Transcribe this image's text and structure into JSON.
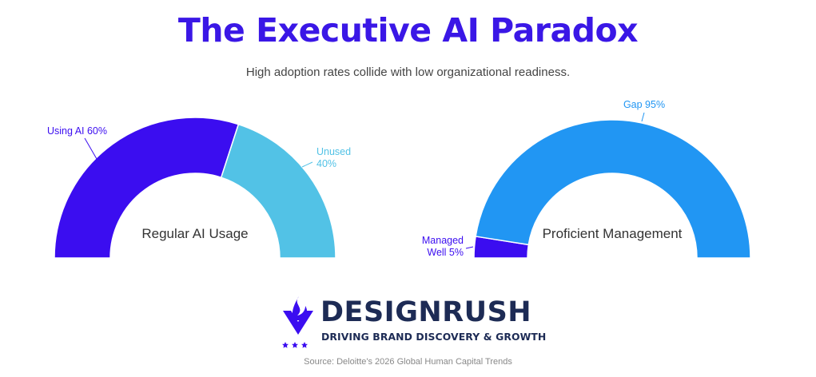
{
  "header": {
    "title": "The Executive AI Paradox",
    "subtitle": "High adoption rates collide with low organizational readiness."
  },
  "colors": {
    "title": "#3a17e6",
    "purple": "#3b0df0",
    "light_blue": "#52c2e6",
    "blue": "#2196f3",
    "label_gray": "#333333",
    "brand_navy": "#1d2b55"
  },
  "chart_data": [
    {
      "type": "pie",
      "variant": "semicircle-donut",
      "center_label": "Regular AI Usage",
      "slices": [
        {
          "label_lines": [
            "Using AI 60%"
          ],
          "value": 60,
          "color": "#3b0df0"
        },
        {
          "label_lines": [
            "Unused",
            "40%"
          ],
          "value": 40,
          "color": "#52c2e6"
        }
      ]
    },
    {
      "type": "pie",
      "variant": "semicircle-donut",
      "center_label": "Proficient Management",
      "slices": [
        {
          "label_lines": [
            "Managed",
            "Well 5%"
          ],
          "value": 5,
          "color": "#3b0df0"
        },
        {
          "label_lines": [
            "Gap 95%"
          ],
          "value": 95,
          "color": "#2196f3"
        }
      ]
    }
  ],
  "footer": {
    "brand_name": "DESIGNRUSH",
    "tagline": "DRIVING BRAND DISCOVERY & GROWTH",
    "source": "Source: Deloitte's 2026 Global Human Capital Trends",
    "logo_icon": "flame-chevron-logo-icon"
  }
}
